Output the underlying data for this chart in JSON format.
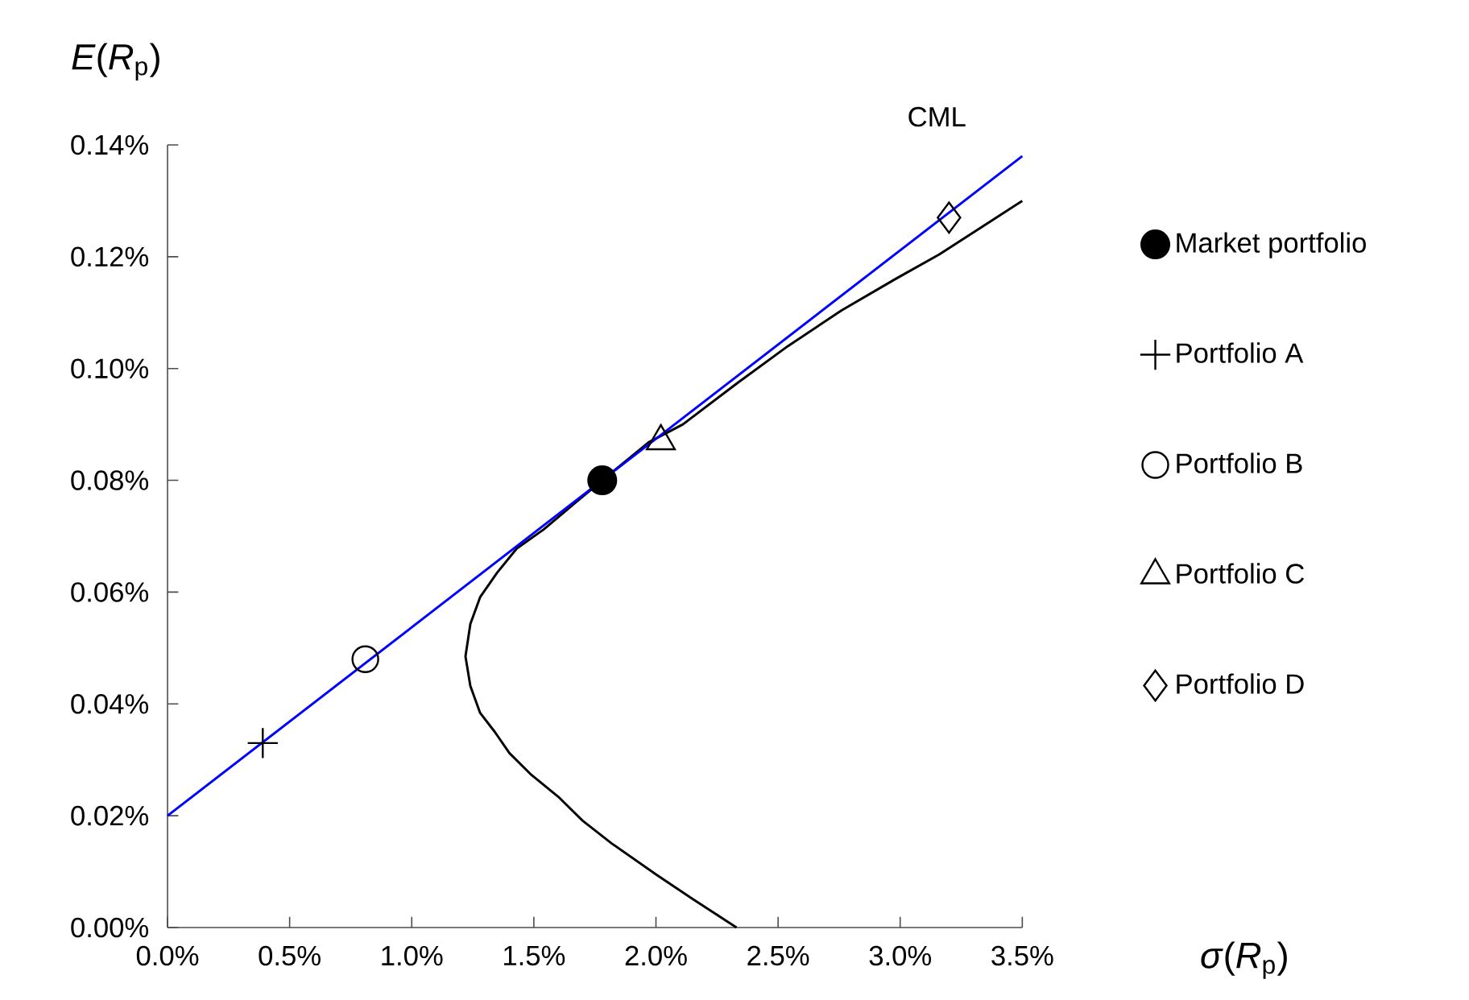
{
  "chart_data": {
    "type": "scatter",
    "xlabel": "*σ*(*R*$_{p}$)",
    "ylabel": "*E*(*R*$_{p}$)",
    "annotations": [
      "CML"
    ],
    "xlim": [
      0,
      3.5
    ],
    "ylim": [
      0,
      0.14
    ],
    "xticks": [
      {
        "value": 0,
        "label": "0.0%"
      },
      {
        "value": 0.5,
        "label": "0.5%"
      },
      {
        "value": 1.0,
        "label": "1.0%"
      },
      {
        "value": 1.5,
        "label": "1.5%"
      },
      {
        "value": 2.0,
        "label": "2.0%"
      },
      {
        "value": 2.5,
        "label": "2.5%"
      },
      {
        "value": 3.0,
        "label": "3.0%"
      },
      {
        "value": 3.5,
        "label": "3.5%"
      }
    ],
    "yticks": [
      {
        "value": 0,
        "label": "0.00%"
      },
      {
        "value": 0.02,
        "label": "0.02%"
      },
      {
        "value": 0.04,
        "label": "0.04%"
      },
      {
        "value": 0.06,
        "label": "0.06%"
      },
      {
        "value": 0.08,
        "label": "0.08%"
      },
      {
        "value": 0.1,
        "label": "0.10%"
      },
      {
        "value": 0.12,
        "label": "0.12%"
      },
      {
        "value": 0.14,
        "label": "0.14%"
      }
    ],
    "grid": false,
    "legend": "right",
    "series": [
      {
        "type": "line",
        "color": "#000000",
        "marker": "none",
        "x": [
          2.33,
          2.15,
          2.0,
          1.82,
          1.7,
          1.6,
          1.49,
          1.4,
          1.34,
          1.28,
          1.24,
          1.22,
          1.24,
          1.28,
          1.35,
          1.43,
          1.54,
          1.67,
          1.78,
          1.97,
          2.11,
          2.33,
          2.54,
          2.76,
          2.98,
          3.16,
          3.33,
          3.5
        ],
        "values": [
          0.0,
          0.0051,
          0.0095,
          0.015,
          0.0191,
          0.0234,
          0.0273,
          0.0312,
          0.035,
          0.0384,
          0.0432,
          0.0485,
          0.0543,
          0.0591,
          0.0635,
          0.0678,
          0.0712,
          0.076,
          0.08,
          0.0868,
          0.09,
          0.0973,
          0.104,
          0.1104,
          0.116,
          0.1204,
          0.1252,
          0.13
        ]
      },
      {
        "type": "line",
        "color": "#0000ff",
        "marker": "none",
        "x": [
          0,
          3.5
        ],
        "values": [
          0.02,
          0.138
        ]
      },
      {
        "name": "Market portfolio",
        "color": "#000000",
        "marker": "circle",
        "x": [
          1.78
        ],
        "values": [
          0.08
        ]
      },
      {
        "name": "Portfolio A",
        "color": "#000000",
        "marker": "cross",
        "x": [
          0.39
        ],
        "values": [
          0.033
        ]
      },
      {
        "name": "Portfolio B",
        "color": "#000000",
        "marker": "circle",
        "x": [
          0.81
        ],
        "values": [
          0.048
        ]
      },
      {
        "name": "Portfolio C",
        "color": "#000000",
        "marker": "triangle",
        "x": [
          2.02
        ],
        "values": [
          0.087
        ]
      },
      {
        "name": "Portfolio D",
        "color": "#000000",
        "marker": "diamond",
        "x": [
          3.2
        ],
        "values": [
          0.127
        ]
      }
    ]
  }
}
